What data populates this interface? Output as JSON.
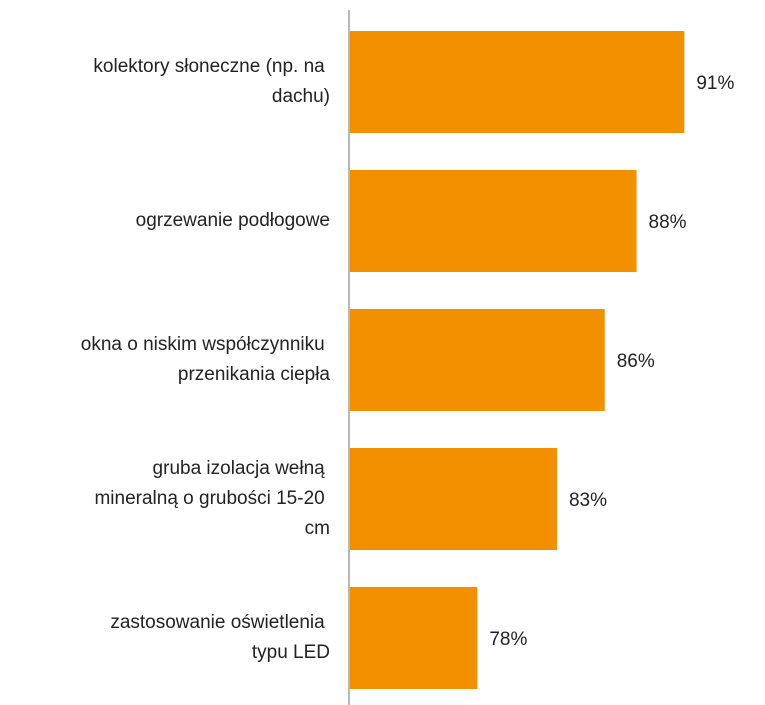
{
  "chart_data": {
    "type": "barh",
    "categories": [
      "kolektory słoneczne (np. na dachu)",
      "ogrzewanie podłogowe",
      "okna o niskim współczynniku przenikania ciepła",
      "gruba izolacja wełną mineralną o grubości 15-20 cm",
      "zastosowanie oświetlenia typu LED"
    ],
    "values": [
      91,
      88,
      86,
      83,
      78
    ],
    "value_labels": [
      "91%",
      "88%",
      "86%",
      "83%",
      "78%"
    ],
    "color": "#f39000",
    "xlim": [
      70,
      95
    ]
  }
}
